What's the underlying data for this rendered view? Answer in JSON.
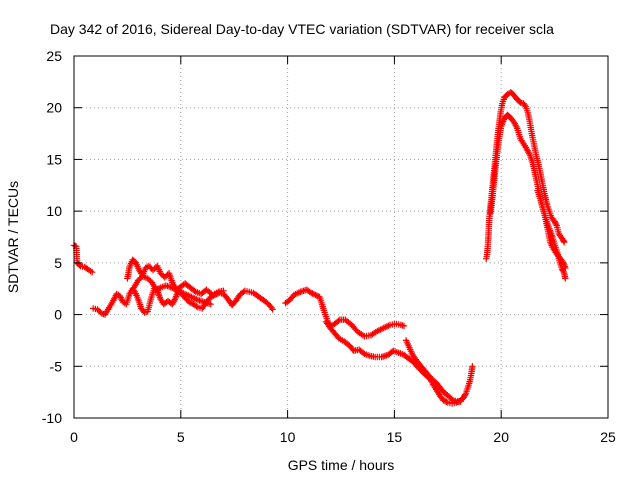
{
  "chart_data": {
    "type": "scatter",
    "title": "Day 342 of 2016, Sidereal Day-to-day VTEC variation (SDTVAR) for receiver scla",
    "xlabel": "GPS time / hours",
    "ylabel": "SDTVAR / TECUs",
    "xlim": [
      0,
      25
    ],
    "ylim": [
      -10,
      25
    ],
    "xticks": [
      0,
      5,
      10,
      15,
      20,
      25
    ],
    "yticks": [
      -10,
      -5,
      0,
      5,
      10,
      15,
      20,
      25
    ],
    "grid": true,
    "marker": "+",
    "colors": {
      "series": "#ff0000",
      "grid": "#a0a0a0",
      "axis": "#000000"
    },
    "series": [
      {
        "name": "SDTVAR",
        "segments": [
          [
            [
              0.0,
              6.7
            ],
            [
              0.1,
              6.6
            ],
            [
              0.15,
              5.0
            ],
            [
              0.3,
              4.7
            ],
            [
              0.5,
              4.6
            ],
            [
              0.7,
              4.3
            ],
            [
              0.85,
              4.1
            ]
          ],
          [
            [
              0.9,
              0.6
            ],
            [
              1.1,
              0.5
            ],
            [
              1.3,
              0.1
            ],
            [
              1.45,
              0.0
            ],
            [
              1.6,
              0.5
            ],
            [
              1.8,
              1.2
            ],
            [
              2.0,
              2.0
            ],
            [
              2.15,
              1.8
            ],
            [
              2.3,
              1.2
            ],
            [
              2.45,
              1.0
            ],
            [
              2.6,
              2.0
            ],
            [
              2.75,
              2.5
            ],
            [
              2.85,
              2.2
            ],
            [
              3.0,
              1.5
            ],
            [
              3.15,
              0.6
            ],
            [
              3.3,
              0.2
            ],
            [
              3.45,
              0.3
            ],
            [
              3.6,
              1.5
            ],
            [
              3.75,
              2.5
            ],
            [
              3.9,
              2.3
            ],
            [
              4.05,
              1.5
            ],
            [
              4.2,
              1.0
            ],
            [
              4.4,
              1.3
            ],
            [
              4.6,
              1.0
            ],
            [
              4.75,
              1.6
            ],
            [
              4.9,
              2.4
            ],
            [
              5.05,
              2.0
            ],
            [
              5.2,
              1.6
            ],
            [
              5.4,
              1.2
            ],
            [
              5.6,
              1.0
            ],
            [
              5.8,
              0.7
            ],
            [
              6.0,
              0.6
            ],
            [
              6.2,
              1.2
            ],
            [
              6.4,
              1.7
            ],
            [
              6.6,
              1.9
            ],
            [
              6.8,
              2.1
            ],
            [
              7.0,
              2.0
            ],
            [
              7.2,
              1.5
            ],
            [
              7.4,
              0.9
            ],
            [
              7.6,
              1.4
            ],
            [
              7.8,
              2.0
            ],
            [
              8.0,
              2.3
            ],
            [
              8.2,
              2.2
            ],
            [
              8.4,
              2.1
            ],
            [
              8.6,
              1.8
            ],
            [
              8.8,
              1.5
            ],
            [
              9.0,
              1.2
            ],
            [
              9.2,
              0.8
            ],
            [
              9.3,
              0.5
            ]
          ],
          [
            [
              2.5,
              3.5
            ],
            [
              2.6,
              4.6
            ],
            [
              2.75,
              5.3
            ],
            [
              2.9,
              5.0
            ],
            [
              3.05,
              4.3
            ],
            [
              3.2,
              3.8
            ],
            [
              3.35,
              4.5
            ],
            [
              3.5,
              4.7
            ],
            [
              3.7,
              4.3
            ],
            [
              3.9,
              4.7
            ],
            [
              4.05,
              4.0
            ],
            [
              4.25,
              3.6
            ],
            [
              4.45,
              4.0
            ],
            [
              4.6,
              3.1
            ],
            [
              4.8,
              2.4
            ],
            [
              5.0,
              2.7
            ],
            [
              5.2,
              3.0
            ],
            [
              5.45,
              2.6
            ],
            [
              5.7,
              2.2
            ],
            [
              5.95,
              2.0
            ],
            [
              6.2,
              2.4
            ],
            [
              6.5,
              1.9
            ],
            [
              6.75,
              2.2
            ],
            [
              7.0,
              2.3
            ]
          ],
          [
            [
              2.8,
              2.6
            ],
            [
              3.0,
              3.3
            ],
            [
              3.2,
              3.7
            ],
            [
              3.45,
              3.5
            ],
            [
              3.65,
              3.1
            ],
            [
              3.85,
              2.4
            ],
            [
              4.05,
              2.6
            ],
            [
              4.3,
              2.8
            ],
            [
              4.6,
              2.6
            ],
            [
              4.9,
              2.2
            ],
            [
              5.2,
              2.0
            ],
            [
              5.5,
              1.7
            ],
            [
              5.8,
              1.4
            ],
            [
              6.1,
              1.2
            ],
            [
              6.4,
              1.0
            ]
          ],
          [
            [
              9.9,
              1.1
            ],
            [
              10.1,
              1.4
            ],
            [
              10.3,
              1.9
            ],
            [
              10.6,
              2.2
            ],
            [
              10.9,
              2.4
            ],
            [
              11.1,
              2.1
            ],
            [
              11.3,
              1.9
            ],
            [
              11.5,
              1.7
            ],
            [
              11.7,
              0.4
            ],
            [
              11.9,
              -0.8
            ],
            [
              12.05,
              -1.1
            ],
            [
              12.2,
              -0.9
            ],
            [
              12.45,
              -0.5
            ],
            [
              12.7,
              -0.5
            ],
            [
              13.0,
              -1.0
            ],
            [
              13.3,
              -1.7
            ],
            [
              13.6,
              -2.1
            ],
            [
              13.9,
              -2.0
            ],
            [
              14.2,
              -1.6
            ],
            [
              14.5,
              -1.3
            ],
            [
              14.8,
              -1.0
            ],
            [
              15.1,
              -0.9
            ],
            [
              15.3,
              -1.0
            ],
            [
              15.45,
              -1.1
            ]
          ],
          [
            [
              11.8,
              -0.7
            ],
            [
              12.0,
              -1.3
            ],
            [
              12.2,
              -1.8
            ],
            [
              12.4,
              -2.3
            ],
            [
              12.65,
              -2.6
            ],
            [
              12.9,
              -3.0
            ],
            [
              13.1,
              -3.5
            ],
            [
              13.35,
              -3.4
            ],
            [
              13.6,
              -3.8
            ],
            [
              13.85,
              -4.0
            ],
            [
              14.1,
              -4.1
            ],
            [
              14.4,
              -4.1
            ],
            [
              14.7,
              -3.9
            ],
            [
              14.95,
              -3.5
            ],
            [
              15.2,
              -3.7
            ],
            [
              15.45,
              -3.9
            ]
          ],
          [
            [
              15.45,
              -3.9
            ],
            [
              15.7,
              -4.3
            ],
            [
              15.9,
              -4.6
            ],
            [
              16.05,
              -5.0
            ],
            [
              16.25,
              -5.4
            ],
            [
              16.4,
              -5.7
            ],
            [
              16.55,
              -6.0
            ],
            [
              16.7,
              -6.3
            ],
            [
              16.85,
              -6.9
            ],
            [
              17.0,
              -7.4
            ],
            [
              17.15,
              -7.9
            ],
            [
              17.3,
              -8.3
            ],
            [
              17.5,
              -8.5
            ],
            [
              17.7,
              -8.6
            ],
            [
              17.9,
              -8.5
            ],
            [
              18.1,
              -8.3
            ],
            [
              18.25,
              -8.0
            ],
            [
              18.35,
              -7.6
            ],
            [
              18.45,
              -7.0
            ],
            [
              18.55,
              -6.3
            ],
            [
              18.62,
              -5.5
            ],
            [
              18.65,
              -5.0
            ]
          ],
          [
            [
              15.55,
              -2.5
            ],
            [
              15.7,
              -3.2
            ],
            [
              15.85,
              -3.9
            ],
            [
              16.05,
              -4.5
            ],
            [
              16.25,
              -5.0
            ],
            [
              16.45,
              -5.5
            ],
            [
              16.65,
              -6.0
            ],
            [
              16.85,
              -6.4
            ],
            [
              17.0,
              -6.7
            ],
            [
              17.15,
              -7.1
            ],
            [
              17.35,
              -7.6
            ],
            [
              17.55,
              -7.9
            ],
            [
              17.75,
              -8.3
            ],
            [
              17.95,
              -8.4
            ],
            [
              18.1,
              -8.4
            ]
          ],
          [
            [
              19.3,
              5.4
            ],
            [
              19.35,
              6.0
            ],
            [
              19.4,
              7.5
            ],
            [
              19.45,
              9.5
            ],
            [
              19.55,
              11.5
            ],
            [
              19.65,
              13.5
            ],
            [
              19.75,
              15.6
            ],
            [
              19.85,
              17.6
            ],
            [
              19.95,
              19.2
            ],
            [
              20.05,
              20.4
            ],
            [
              20.15,
              21.0
            ],
            [
              20.3,
              21.3
            ],
            [
              20.45,
              21.5
            ],
            [
              20.6,
              21.2
            ],
            [
              20.75,
              20.8
            ],
            [
              20.9,
              20.5
            ],
            [
              21.05,
              20.4
            ],
            [
              21.15,
              20.1
            ],
            [
              21.25,
              19.5
            ],
            [
              21.35,
              18.5
            ],
            [
              21.45,
              17.3
            ],
            [
              21.55,
              16.3
            ],
            [
              21.65,
              15.3
            ],
            [
              21.75,
              14.5
            ],
            [
              21.85,
              13.5
            ],
            [
              21.95,
              12.5
            ],
            [
              22.05,
              11.5
            ],
            [
              22.15,
              10.6
            ],
            [
              22.25,
              10.0
            ],
            [
              22.35,
              9.4
            ],
            [
              22.5,
              9.0
            ],
            [
              22.6,
              8.6
            ],
            [
              22.7,
              7.8
            ],
            [
              22.8,
              7.5
            ],
            [
              22.9,
              7.2
            ],
            [
              22.95,
              7.0
            ]
          ],
          [
            [
              19.5,
              9.8
            ],
            [
              19.6,
              11.5
            ],
            [
              19.7,
              13.6
            ],
            [
              19.8,
              15.4
            ],
            [
              19.9,
              17.0
            ],
            [
              20.0,
              18.2
            ],
            [
              20.15,
              19.0
            ],
            [
              20.3,
              19.3
            ],
            [
              20.45,
              19.0
            ],
            [
              20.6,
              18.6
            ],
            [
              20.75,
              18.0
            ],
            [
              20.9,
              17.0
            ],
            [
              21.05,
              16.5
            ],
            [
              21.2,
              16.0
            ],
            [
              21.35,
              15.4
            ],
            [
              21.5,
              14.5
            ],
            [
              21.65,
              13.0
            ],
            [
              21.8,
              11.6
            ],
            [
              21.95,
              10.2
            ],
            [
              22.1,
              9.2
            ],
            [
              22.25,
              8.3
            ],
            [
              22.4,
              7.5
            ],
            [
              22.55,
              6.5
            ],
            [
              22.65,
              5.8
            ],
            [
              22.75,
              5.0
            ],
            [
              22.85,
              4.4
            ],
            [
              22.95,
              4.0
            ],
            [
              23.0,
              3.5
            ]
          ],
          [
            [
              21.7,
              12.0
            ],
            [
              21.85,
              11.0
            ],
            [
              22.0,
              10.0
            ],
            [
              22.1,
              9.0
            ],
            [
              22.2,
              8.0
            ],
            [
              22.3,
              7.0
            ],
            [
              22.4,
              6.5
            ],
            [
              22.55,
              6.0
            ],
            [
              22.7,
              5.6
            ],
            [
              22.85,
              5.2
            ],
            [
              22.95,
              4.8
            ],
            [
              23.0,
              4.5
            ]
          ]
        ]
      }
    ]
  }
}
